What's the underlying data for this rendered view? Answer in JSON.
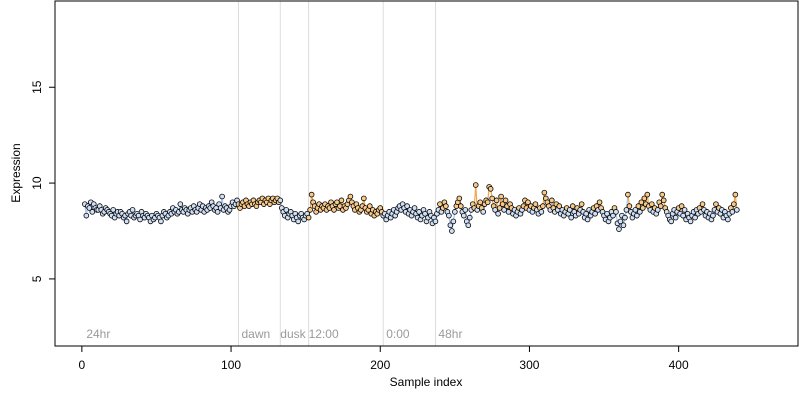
{
  "chart_data": {
    "type": "scatter",
    "title": "",
    "xlabel": "Sample index",
    "ylabel": "Expression",
    "xlim": [
      -18,
      480
    ],
    "ylim": [
      1.5,
      19.5
    ],
    "xticks": [
      0,
      100,
      200,
      300,
      400
    ],
    "yticks": [
      5,
      10,
      15
    ],
    "grid": false,
    "legend": "none",
    "colors": {
      "point_stroke": "#000000",
      "light_fill": "#cfe0f7",
      "dark_fill": "#f7c98a",
      "light_segment": "#a8c4ea",
      "dark_segment": "#f0a64a",
      "vline": "#dcdcdc",
      "annotation": "#9a9a9a"
    },
    "vlines": [
      105,
      133,
      152,
      202,
      237
    ],
    "annotations": [
      {
        "x": 3,
        "text": "24hr"
      },
      {
        "x": 107,
        "text": "dawn"
      },
      {
        "x": 133,
        "text": "dusk"
      },
      {
        "x": 152,
        "text": "12:00"
      },
      {
        "x": 204,
        "text": "0:00"
      },
      {
        "x": 239,
        "text": "48hr"
      }
    ],
    "segments": [
      {
        "x0": 0,
        "x1": 105,
        "phase": "light"
      },
      {
        "x0": 105,
        "x1": 133,
        "phase": "dark"
      },
      {
        "x0": 133,
        "x1": 152,
        "phase": "light"
      },
      {
        "x0": 152,
        "x1": 202,
        "phase": "dark"
      },
      {
        "x0": 202,
        "x1": 237,
        "phase": "light"
      },
      {
        "x0": 237,
        "x1": 460,
        "phase": "mixed"
      }
    ],
    "series": [
      {
        "x_start": 2,
        "values": [
          8.9,
          8.3,
          8.8,
          8.7,
          9.0,
          8.5,
          8.9,
          8.7,
          8.6,
          8.6,
          8.8,
          8.6,
          8.4,
          8.5,
          8.7,
          8.6,
          8.5,
          8.4,
          8.3,
          8.6,
          8.2,
          8.4,
          8.5,
          8.3,
          8.5,
          8.4,
          8.2,
          8.3,
          8.0,
          8.4,
          8.5,
          8.3,
          8.6,
          8.2,
          8.3,
          8.4,
          8.3,
          8.1,
          8.5,
          8.3,
          8.2,
          8.4,
          8.3,
          8.2,
          8.0,
          8.3,
          8.1,
          8.2,
          8.4,
          8.3,
          8.2,
          8.0,
          8.3,
          8.5,
          8.4,
          8.2,
          8.3,
          8.5,
          8.4,
          8.7,
          8.5,
          8.6,
          8.4,
          8.5,
          8.9,
          8.6,
          8.5,
          8.7,
          8.6,
          8.4,
          8.6,
          8.7,
          8.5,
          8.8,
          8.6,
          8.5,
          8.7,
          8.9,
          8.6,
          8.8,
          8.5,
          8.7,
          8.6,
          8.8,
          8.7,
          9.0,
          8.8,
          8.6,
          8.7,
          8.5,
          8.9,
          8.7,
          9.3,
          8.6,
          8.8,
          8.7,
          8.5,
          8.6,
          8.8,
          9.0,
          8.8,
          8.9,
          9.1,
          8.9,
          8.7,
          8.9,
          9.0,
          8.8,
          9.1,
          8.9,
          8.8,
          9.0,
          8.9,
          9.1,
          8.9,
          8.8,
          9.0,
          9.1,
          9.0,
          9.2,
          8.9,
          9.1,
          9.0,
          9.2,
          8.9,
          9.1,
          9.2,
          9.0,
          9.1,
          9.2,
          9.0,
          9.1,
          8.7,
          8.5,
          8.3,
          8.6,
          8.2,
          8.4,
          8.5,
          8.3,
          8.1,
          8.4,
          8.2,
          8.0,
          8.3,
          8.4,
          8.2,
          8.1,
          8.3,
          8.4,
          8.2,
          8.6,
          9.4,
          9.0,
          8.8,
          8.5,
          8.7,
          8.9,
          8.6,
          8.8,
          8.7,
          8.9,
          8.6,
          8.8,
          8.7,
          9.0,
          8.8,
          8.6,
          8.9,
          9.0,
          8.7,
          8.8,
          9.1,
          8.6,
          8.8,
          8.7,
          8.9,
          9.1,
          9.3,
          9.0,
          8.8,
          8.6,
          8.9,
          8.7,
          8.5,
          8.6,
          8.8,
          9.2,
          8.7,
          8.5,
          8.6,
          8.8,
          8.4,
          8.6,
          8.3,
          8.5,
          8.4,
          8.6,
          8.7,
          8.5,
          8.3,
          8.4,
          8.1,
          8.3,
          8.5,
          8.2,
          8.4,
          8.6,
          8.3,
          8.5,
          8.7,
          8.8,
          8.6,
          8.9,
          8.7,
          8.5,
          8.8,
          8.4,
          8.6,
          8.3,
          8.5,
          8.7,
          8.4,
          8.2,
          8.5,
          8.1,
          8.3,
          8.6,
          8.4,
          8.0,
          8.2,
          8.5,
          8.3,
          7.9,
          8.2,
          8.0,
          8.4,
          8.6,
          8.9,
          8.5,
          8.7,
          9.0,
          8.8,
          8.5,
          8.3,
          7.8,
          7.5,
          8.0,
          8.5,
          8.8,
          9.0,
          9.2,
          8.8,
          8.5,
          8.3,
          8.6,
          8.0,
          7.8,
          8.2,
          8.6,
          8.9,
          8.7,
          9.9,
          8.6,
          8.8,
          9.0,
          8.7,
          8.5,
          8.9,
          9.1,
          9.0,
          9.8,
          9.7,
          9.2,
          8.8,
          8.6,
          9.1,
          8.4,
          8.7,
          9.3,
          8.9,
          8.6,
          9.1,
          8.8,
          8.5,
          8.9,
          8.7,
          8.4,
          8.6,
          8.3,
          8.5,
          8.7,
          8.4,
          8.6,
          8.8,
          9.1,
          8.7,
          9.0,
          8.6,
          8.8,
          8.5,
          8.7,
          8.9,
          8.6,
          8.4,
          8.7,
          8.5,
          8.8,
          9.5,
          9.2,
          9.0,
          8.8,
          8.6,
          9.1,
          8.7,
          8.5,
          8.9,
          8.6,
          8.8,
          8.4,
          8.6,
          8.3,
          8.5,
          8.7,
          8.4,
          8.6,
          8.2,
          8.8,
          8.5,
          8.3,
          8.7,
          8.4,
          8.6,
          8.9,
          8.5,
          8.2,
          8.4,
          8.1,
          8.6,
          8.3,
          8.5,
          8.7,
          8.4,
          8.8,
          8.6,
          9.0,
          8.7,
          8.5,
          8.3,
          8.1,
          8.4,
          8.0,
          8.2,
          8.5,
          8.3,
          8.7,
          8.5,
          7.9,
          7.6,
          8.0,
          8.3,
          7.8,
          8.2,
          8.6,
          9.4,
          8.8,
          8.5,
          8.2,
          8.4,
          8.6,
          8.3,
          8.8,
          8.5,
          9.0,
          8.7,
          9.2,
          8.9,
          9.4,
          8.8,
          8.6,
          8.9,
          8.5,
          8.7,
          8.4,
          8.6,
          9.0,
          8.8,
          9.4,
          9.1,
          8.7,
          8.5,
          8.3,
          8.1,
          8.0,
          8.4,
          8.6,
          8.2,
          8.5,
          8.7,
          8.4,
          8.8,
          8.3,
          8.6,
          8.1,
          8.4,
          8.2,
          8.0,
          8.3,
          8.5,
          8.2,
          8.6,
          8.4,
          8.7,
          8.5,
          8.9,
          8.6,
          8.3,
          8.5,
          8.2,
          8.4,
          8.1,
          8.3,
          8.6,
          8.9,
          8.5,
          8.7,
          8.4,
          8.6,
          8.2,
          8.5,
          8.3,
          8.1,
          8.4,
          8.7,
          8.5,
          8.9,
          9.4,
          8.6
        ]
      }
    ]
  }
}
